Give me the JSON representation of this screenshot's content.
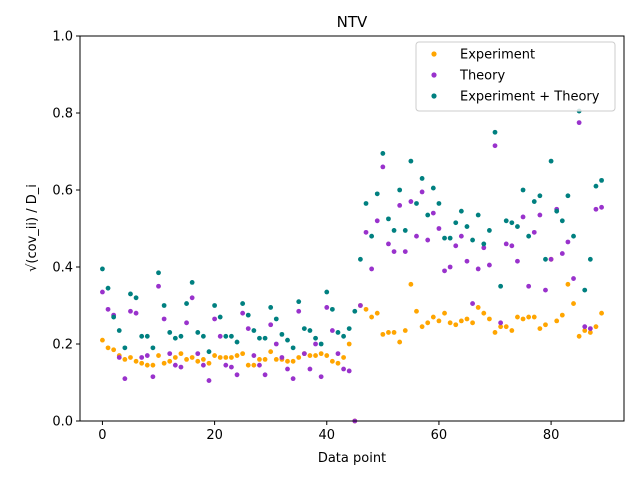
{
  "chart_data": {
    "type": "scatter",
    "title": "NTV",
    "xlabel": "Data point",
    "ylabel": "√(cov_ii) / D_i",
    "xlim": [
      -4,
      93
    ],
    "ylim": [
      0,
      1.0
    ],
    "x_ticks": [
      0,
      20,
      40,
      60,
      80
    ],
    "y_ticks": [
      0.0,
      0.2,
      0.4,
      0.6,
      0.8,
      1.0
    ],
    "x_tick_labels": [
      "0",
      "20",
      "40",
      "60",
      "80"
    ],
    "y_tick_labels": [
      "0.0",
      "0.2",
      "0.4",
      "0.6",
      "0.8",
      "1.0"
    ],
    "legend_position": "top-right",
    "grid": false,
    "series": [
      {
        "name": "Experiment",
        "color": "#ffa500",
        "values": [
          0.21,
          0.19,
          0.185,
          0.17,
          0.16,
          0.165,
          0.155,
          0.15,
          0.145,
          0.145,
          0.17,
          0.15,
          0.155,
          0.165,
          0.175,
          0.16,
          0.165,
          0.155,
          0.16,
          0.15,
          0.17,
          0.165,
          0.165,
          0.165,
          0.17,
          0.175,
          0.145,
          0.145,
          0.16,
          0.16,
          0.18,
          0.16,
          0.16,
          0.155,
          0.155,
          0.165,
          0.175,
          0.17,
          0.17,
          0.175,
          0.17,
          0.155,
          0.15,
          0.165,
          0.2,
          0.0,
          0.3,
          0.29,
          0.27,
          0.28,
          0.225,
          0.23,
          0.23,
          0.205,
          0.235,
          0.355,
          0.285,
          0.245,
          0.255,
          0.27,
          0.26,
          0.28,
          0.255,
          0.25,
          0.26,
          0.265,
          0.255,
          0.295,
          0.28,
          0.265,
          0.23,
          0.245,
          0.245,
          0.235,
          0.27,
          0.265,
          0.27,
          0.27,
          0.24,
          0.25,
          0.42,
          0.26,
          0.275,
          0.355,
          0.305,
          0.22,
          0.235,
          0.23,
          0.245,
          0.28
        ]
      },
      {
        "name": "Theory",
        "color": "#9932cc",
        "values": [
          0.335,
          0.29,
          0.275,
          0.165,
          0.11,
          0.285,
          0.28,
          0.165,
          0.17,
          0.115,
          0.35,
          0.265,
          0.175,
          0.145,
          0.14,
          0.255,
          0.32,
          0.175,
          0.145,
          0.105,
          0.265,
          0.22,
          0.145,
          0.14,
          0.12,
          0.28,
          0.24,
          0.17,
          0.145,
          0.12,
          0.25,
          0.2,
          0.165,
          0.135,
          0.11,
          0.285,
          0.175,
          0.135,
          0.2,
          0.115,
          0.295,
          0.235,
          0.175,
          0.135,
          0.13,
          0.0,
          0.3,
          0.49,
          0.395,
          0.52,
          0.66,
          0.46,
          0.44,
          0.56,
          0.44,
          0.57,
          0.48,
          0.595,
          0.47,
          0.54,
          0.5,
          0.39,
          0.4,
          0.455,
          0.48,
          0.415,
          0.305,
          0.395,
          0.45,
          0.405,
          0.715,
          0.255,
          0.46,
          0.455,
          0.415,
          0.53,
          0.35,
          0.49,
          0.535,
          0.34,
          0.42,
          0.55,
          0.435,
          0.465,
          0.37,
          0.775,
          0.245,
          0.24,
          0.55,
          0.555
        ]
      },
      {
        "name": "Experiment + Theory",
        "color": "#008080",
        "values": [
          0.395,
          0.345,
          0.27,
          0.235,
          0.19,
          0.33,
          0.32,
          0.22,
          0.22,
          0.19,
          0.385,
          0.3,
          0.23,
          0.215,
          0.22,
          0.305,
          0.36,
          0.23,
          0.22,
          0.18,
          0.3,
          0.27,
          0.22,
          0.22,
          0.205,
          0.305,
          0.275,
          0.235,
          0.215,
          0.215,
          0.295,
          0.265,
          0.225,
          0.21,
          0.19,
          0.31,
          0.24,
          0.235,
          0.215,
          0.2,
          0.335,
          0.29,
          0.23,
          0.22,
          0.24,
          0.285,
          0.42,
          0.565,
          0.48,
          0.59,
          0.695,
          0.525,
          0.495,
          0.6,
          0.495,
          0.675,
          0.565,
          0.63,
          0.535,
          0.605,
          0.565,
          0.475,
          0.475,
          0.515,
          0.545,
          0.505,
          0.47,
          0.535,
          0.46,
          0.495,
          0.75,
          0.35,
          0.52,
          0.515,
          0.505,
          0.6,
          0.48,
          0.57,
          0.585,
          0.42,
          0.675,
          0.545,
          0.52,
          0.585,
          0.48,
          0.805,
          0.34,
          0.42,
          0.61,
          0.625
        ]
      }
    ]
  }
}
